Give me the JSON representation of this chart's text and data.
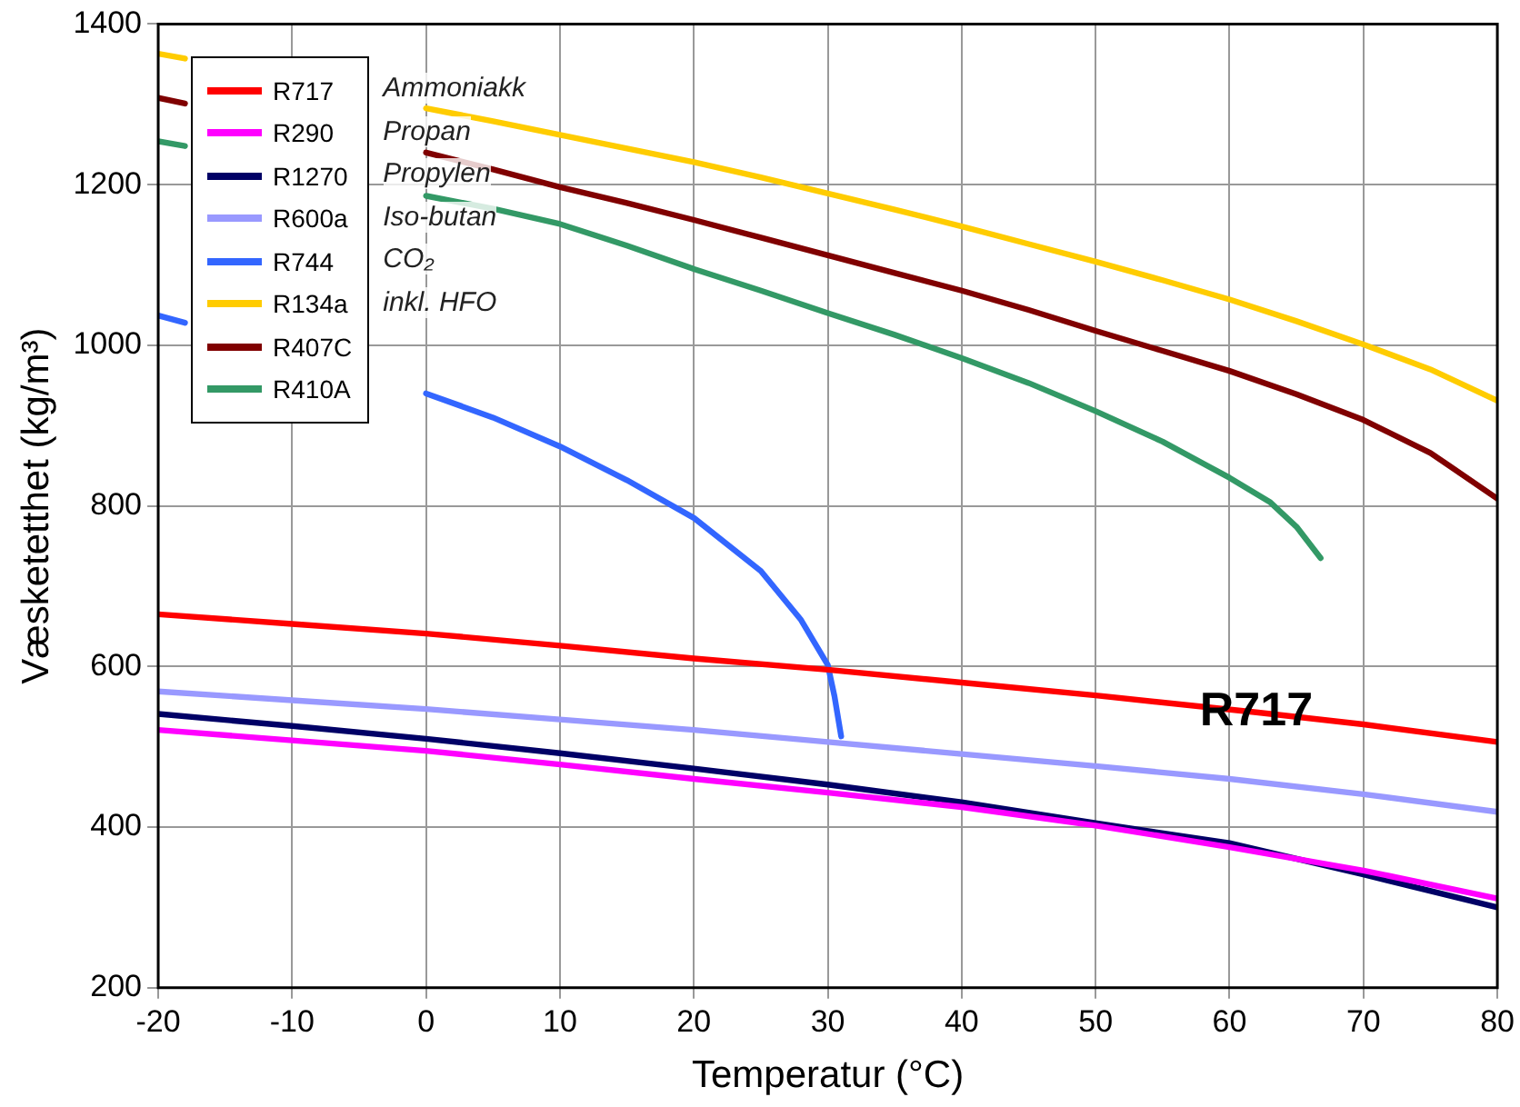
{
  "chart_data": {
    "type": "line",
    "xlabel": "Temperatur (°C)",
    "ylabel": "Væsketetthet (kg/m³)",
    "xlim": [
      -20,
      80
    ],
    "xticks": [
      -20,
      -10,
      0,
      10,
      20,
      30,
      40,
      50,
      60,
      70,
      80
    ],
    "ylim": [
      200,
      1400
    ],
    "yticks": [
      200,
      400,
      600,
      800,
      1000,
      1200,
      1400
    ],
    "grid": true,
    "legend": "top left",
    "marker": "none",
    "line_style": "solid",
    "annotations": [
      "Ammoniakk",
      "Propan",
      "Propylen",
      "Iso-butan",
      "CO₂",
      "inkl. HFO",
      {
        "text": "R717",
        "x": 62,
        "y": 543
      }
    ],
    "series": [
      {
        "name": "R717",
        "color": "#ff0000",
        "x": [
          -20,
          -10,
          0,
          10,
          20,
          30,
          40,
          50,
          62,
          70,
          80
        ],
        "values": [
          665,
          653,
          641,
          626,
          610,
          596,
          580,
          564,
          543,
          528,
          506
        ]
      },
      {
        "name": "R290",
        "color": "#ff00ff",
        "x": [
          -20,
          -10,
          0,
          10,
          20,
          30,
          40,
          50,
          60,
          70,
          80
        ],
        "values": [
          521,
          508,
          495,
          478,
          460,
          443,
          425,
          402,
          375,
          346,
          311
        ]
      },
      {
        "name": "R1270",
        "color": "#000066",
        "x": [
          -20,
          -10,
          0,
          10,
          20,
          30,
          40,
          50,
          60,
          70,
          80
        ],
        "values": [
          541,
          526,
          510,
          492,
          473,
          453,
          431,
          405,
          380,
          341,
          300
        ]
      },
      {
        "name": "R600a",
        "color": "#9999ff",
        "x": [
          -20,
          -10,
          0,
          10,
          20,
          30,
          40,
          50,
          60,
          70,
          80
        ],
        "values": [
          569,
          558,
          547,
          534,
          521,
          506,
          491,
          476,
          460,
          441,
          419
        ]
      },
      {
        "name": "R744",
        "color": "#3366ff",
        "x": [
          -20,
          -18,
          -15,
          -10,
          -5,
          0,
          5,
          10,
          15,
          20,
          25,
          28,
          30,
          30.5,
          31
        ],
        "values": [
          1037,
          1028,
          null,
          null,
          null,
          940,
          910,
          874,
          832,
          785,
          719,
          658,
          602,
          563,
          513
        ]
      },
      {
        "name": "R134a",
        "color": "#ffcc00",
        "x": [
          -20,
          -18,
          -15,
          -10,
          -5,
          0,
          5,
          10,
          15,
          20,
          25,
          30,
          35,
          40,
          45,
          50,
          55,
          60,
          65,
          70,
          75,
          80
        ],
        "values": [
          1363,
          1357,
          null,
          null,
          null,
          1295,
          1279,
          1262,
          1245,
          1228,
          1209,
          1189,
          1169,
          1148,
          1126,
          1104,
          1081,
          1057,
          1030,
          1001,
          970,
          931
        ]
      },
      {
        "name": "R407C",
        "color": "#800000",
        "x": [
          -20,
          -18,
          -15,
          -10,
          -5,
          0,
          5,
          10,
          15,
          20,
          25,
          30,
          35,
          40,
          45,
          50,
          55,
          60,
          65,
          70,
          75,
          80
        ],
        "values": [
          1308,
          1301,
          null,
          null,
          null,
          1240,
          1219,
          1197,
          1177,
          1156,
          1134,
          1112,
          1090,
          1068,
          1044,
          1018,
          993,
          968,
          939,
          907,
          866,
          809
        ]
      },
      {
        "name": "R410A",
        "color": "#339966",
        "x": [
          -20,
          -18,
          -15,
          -10,
          -5,
          0,
          5,
          10,
          15,
          20,
          25,
          30,
          35,
          40,
          45,
          50,
          55,
          60,
          63,
          65,
          66.8
        ],
        "values": [
          1254,
          1248,
          null,
          null,
          null,
          1186,
          1170,
          1151,
          1124,
          1095,
          1068,
          1040,
          1013,
          984,
          953,
          918,
          880,
          835,
          805,
          774,
          735
        ]
      }
    ]
  }
}
